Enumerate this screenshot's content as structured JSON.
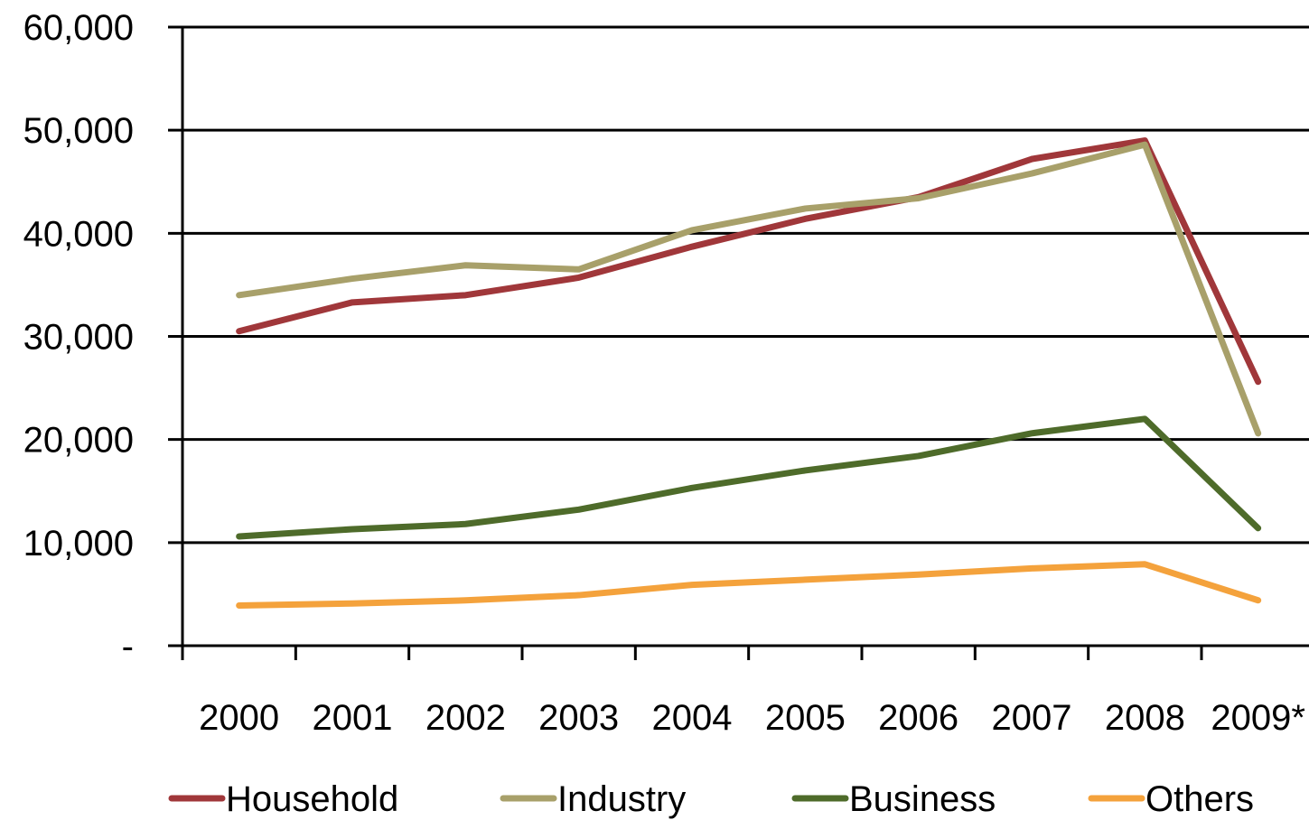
{
  "chart_data": {
    "type": "line",
    "title": "",
    "xlabel": "",
    "ylabel": "",
    "categories": [
      "2000",
      "2001",
      "2002",
      "2003",
      "2004",
      "2005",
      "2006",
      "2007",
      "2008",
      "2009*"
    ],
    "ylim": [
      0,
      60000
    ],
    "y_ticks": [
      {
        "value": 0,
        "label": "-"
      },
      {
        "value": 10000,
        "label": "10,000"
      },
      {
        "value": 20000,
        "label": "20,000"
      },
      {
        "value": 30000,
        "label": "30,000"
      },
      {
        "value": 40000,
        "label": "40,000"
      },
      {
        "value": 50000,
        "label": "50,000"
      },
      {
        "value": 60000,
        "label": "60,000"
      }
    ],
    "grid": true,
    "legend_position": "bottom",
    "series": [
      {
        "name": "Household",
        "color": "#A0373A",
        "values": [
          30500,
          33300,
          34000,
          35700,
          38700,
          41400,
          43500,
          47200,
          49000,
          25600
        ]
      },
      {
        "name": "Industry",
        "color": "#A8A06A",
        "values": [
          34000,
          35600,
          36900,
          36500,
          40300,
          42400,
          43400,
          45800,
          48600,
          20600
        ]
      },
      {
        "name": "Business",
        "color": "#4E6B2A",
        "values": [
          10600,
          11300,
          11800,
          13200,
          15300,
          17000,
          18400,
          20600,
          22000,
          11400
        ]
      },
      {
        "name": "Others",
        "color": "#F4A23C",
        "values": [
          3900,
          4100,
          4400,
          4900,
          5900,
          6400,
          6900,
          7500,
          7900,
          4400
        ]
      }
    ]
  }
}
